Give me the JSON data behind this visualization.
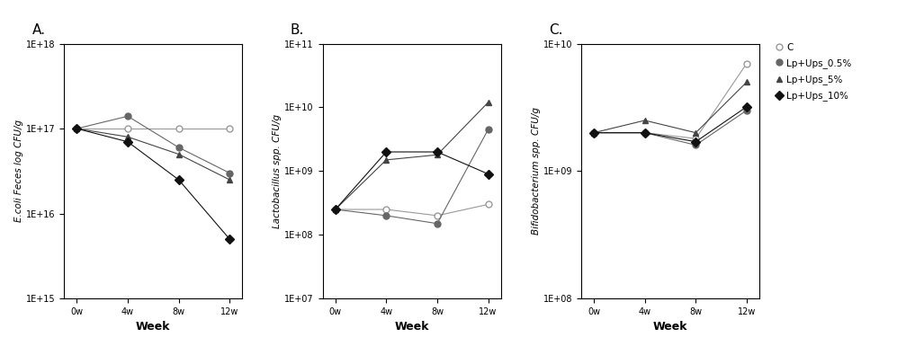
{
  "weeks": [
    0,
    4,
    8,
    12
  ],
  "week_labels": [
    "0w",
    "4w",
    "8w",
    "12w"
  ],
  "panel_A": {
    "title": "A.",
    "ylabel": "E.coli Feces log CFU/g",
    "xlabel": "Week",
    "ylim_log": [
      1000000000000000.0,
      1e+18
    ],
    "yticks": [
      1000000000000000.0,
      1e+16,
      1e+17,
      1e+18
    ],
    "ytick_labels": [
      "1E+15",
      "1E+16",
      "1E+17",
      "1E+18"
    ],
    "series": {
      "C": [
        1e+17,
        1e+17,
        1e+17,
        1e+17
      ],
      "0.5%": [
        1e+17,
        1.4e+17,
        6e+16,
        3e+16
      ],
      "5%": [
        1e+17,
        8e+16,
        5e+16,
        2.5e+16
      ],
      "10%": [
        1e+17,
        7e+16,
        2.5e+16,
        5000000000000000.0
      ]
    }
  },
  "panel_B": {
    "title": "B.",
    "ylabel": "Lactobacillus spp. CFU/g",
    "xlabel": "Week",
    "ylim_log": [
      10000000.0,
      100000000000.0
    ],
    "yticks": [
      10000000.0,
      100000000.0,
      1000000000.0,
      10000000000.0,
      100000000000.0
    ],
    "ytick_labels": [
      "1E+07",
      "1E+08",
      "1E+09",
      "1E+10",
      "1E+11"
    ],
    "series": {
      "C": [
        250000000.0,
        250000000.0,
        200000000.0,
        300000000.0
      ],
      "0.5%": [
        250000000.0,
        200000000.0,
        150000000.0,
        4500000000.0
      ],
      "5%": [
        250000000.0,
        1500000000.0,
        1800000000.0,
        12000000000.0
      ],
      "10%": [
        250000000.0,
        2000000000.0,
        2000000000.0,
        900000000.0
      ]
    }
  },
  "panel_C": {
    "title": "C.",
    "ylabel": "Bifidobacterium spp. CFU/g",
    "xlabel": "Week",
    "ylim_log": [
      100000000.0,
      10000000000.0
    ],
    "yticks": [
      100000000.0,
      1000000000.0,
      10000000000.0
    ],
    "ytick_labels": [
      "1E+08",
      "1E+09",
      "1E+10"
    ],
    "series": {
      "C": [
        2000000000.0,
        2000000000.0,
        1800000000.0,
        7000000000.0
      ],
      "0.5%": [
        2000000000.0,
        2000000000.0,
        1600000000.0,
        3000000000.0
      ],
      "5%": [
        2000000000.0,
        2500000000.0,
        2000000000.0,
        5000000000.0
      ],
      "10%": [
        2000000000.0,
        2000000000.0,
        1700000000.0,
        3200000000.0
      ]
    }
  },
  "series_styles": {
    "C": {
      "color": "#999999",
      "marker": "o",
      "markersize": 5,
      "markerfacecolor": "white",
      "markeredgecolor": "#999999",
      "linestyle": "-",
      "linewidth": 0.8
    },
    "0.5%": {
      "color": "#666666",
      "marker": "o",
      "markersize": 5,
      "markerfacecolor": "#666666",
      "markeredgecolor": "#666666",
      "linestyle": "-",
      "linewidth": 0.8
    },
    "5%": {
      "color": "#444444",
      "marker": "^",
      "markersize": 5,
      "markerfacecolor": "#444444",
      "markeredgecolor": "#444444",
      "linestyle": "-",
      "linewidth": 0.8
    },
    "10%": {
      "color": "#111111",
      "marker": "D",
      "markersize": 5,
      "markerfacecolor": "#111111",
      "markeredgecolor": "#111111",
      "linestyle": "-",
      "linewidth": 0.8
    }
  },
  "legend_labels": {
    "C": "C",
    "0.5%": "Lp+Ups_0.5%",
    "5%": "Lp+Ups_5%",
    "10%": "Lp+Ups_10%"
  },
  "background_color": "#ffffff",
  "font_color": "#333333"
}
